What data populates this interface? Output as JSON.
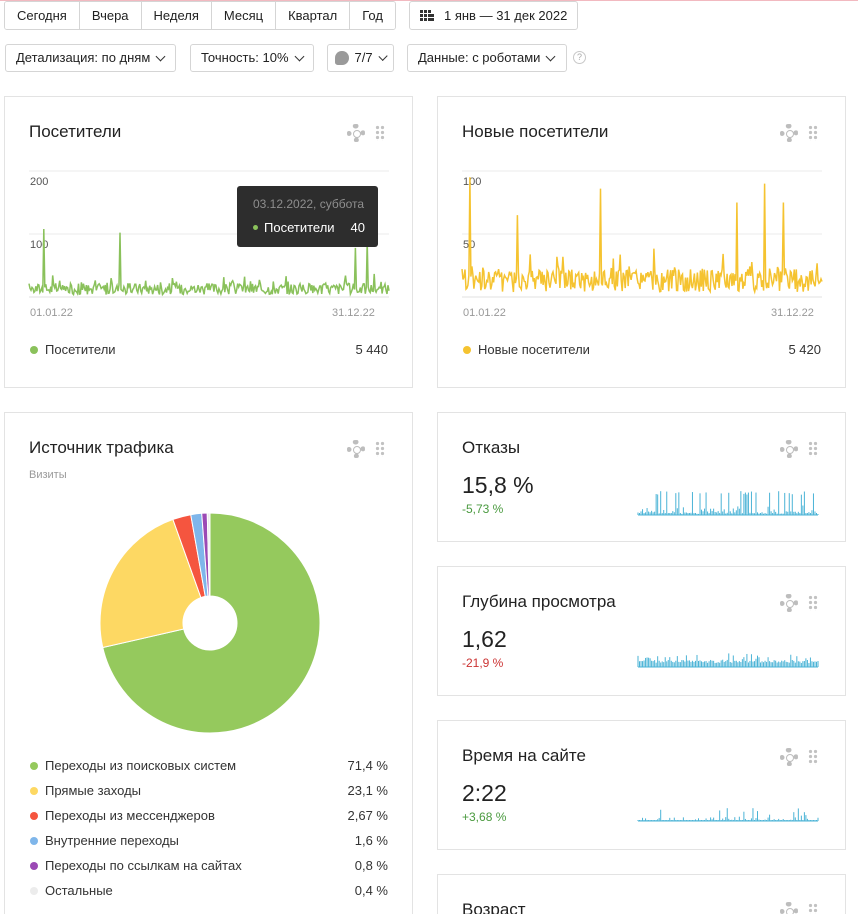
{
  "periods": [
    "Сегодня",
    "Вчера",
    "Неделя",
    "Месяц",
    "Квартал",
    "Год"
  ],
  "date_range": "1 янв — 31 дек 2022",
  "filters": {
    "detail": "Детализация: по дням",
    "accuracy": "Точность: 10%",
    "segments": "7/7",
    "data": "Данные: с роботами",
    "help": "?"
  },
  "visitors": {
    "title": "Посетители",
    "y_ticks": [
      "200",
      "100"
    ],
    "date_start": "01.01.22",
    "date_end": "31.12.22",
    "legend": "Посетители",
    "total": "5 440",
    "color": "#8ac15b",
    "tooltip": {
      "date": "03.12.2022, суббота",
      "label": "Посетители",
      "value": "40"
    }
  },
  "new_visitors": {
    "title": "Новые посетители",
    "y_ticks": [
      "100",
      "50"
    ],
    "date_start": "01.01.22",
    "date_end": "31.12.22",
    "legend": "Новые посетители",
    "total": "5 420",
    "color": "#f5c330"
  },
  "traffic": {
    "title": "Источник трафика",
    "subtitle": "Визиты",
    "items": [
      {
        "label": "Переходы из поисковых систем",
        "value": "71,4 %",
        "share": 71.4,
        "color": "#95c95d"
      },
      {
        "label": "Прямые заходы",
        "value": "23,1 %",
        "share": 23.1,
        "color": "#fdd863"
      },
      {
        "label": "Переходы из мессенджеров",
        "value": "2,67 %",
        "share": 2.67,
        "color": "#f5553f"
      },
      {
        "label": "Внутренние переходы",
        "value": "1,6 %",
        "share": 1.6,
        "color": "#7fb6ea"
      },
      {
        "label": "Переходы по ссылкам на сайтах",
        "value": "0,8 %",
        "share": 0.8,
        "color": "#9b4ab5"
      },
      {
        "label": "Остальные",
        "value": "0,4 %",
        "share": 0.4,
        "color": "#ececec"
      }
    ]
  },
  "bounces": {
    "title": "Отказы",
    "value": "15,8 %",
    "delta": "-5,73 %",
    "delta_color": "#4a9a3f",
    "spark_color": "#4ab3d6"
  },
  "depth": {
    "title": "Глубина просмотра",
    "value": "1,62",
    "delta": "-21,9 %",
    "delta_color": "#cc3333",
    "spark_color": "#4ab3d6"
  },
  "time": {
    "title": "Время на сайте",
    "value": "2:22",
    "delta": "+3,68 %",
    "delta_color": "#4a9a3f",
    "spark_color": "#4ab3d6"
  },
  "age": {
    "title": "Возраст"
  }
}
